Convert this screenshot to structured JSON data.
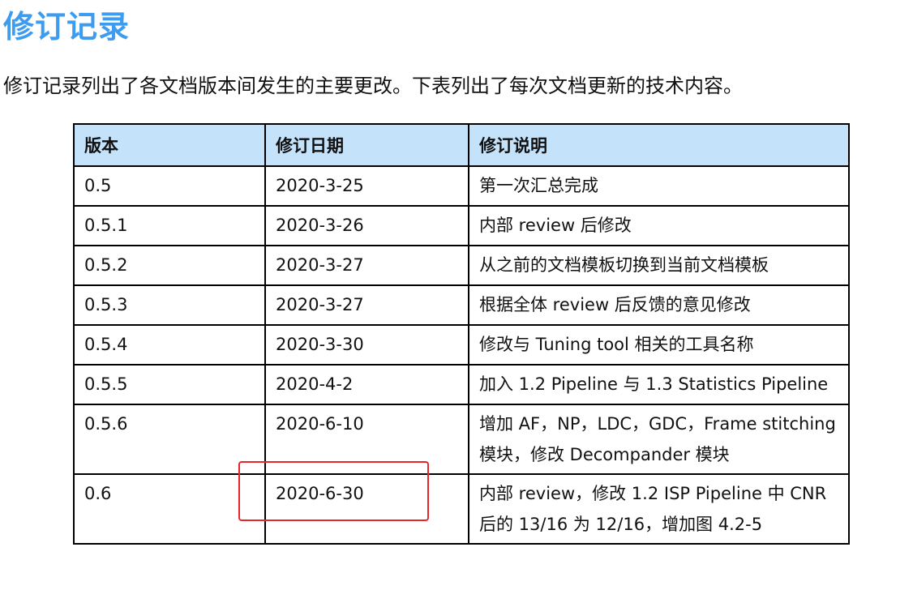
{
  "title": "修订记录",
  "intro": "修订记录列出了各文档版本间发生的主要更改。下表列出了每次文档更新的技术内容。",
  "table": {
    "headers": [
      "版本",
      "修订日期",
      "修订说明"
    ],
    "rows": [
      [
        "0.5",
        "2020-3-25",
        "第一次汇总完成"
      ],
      [
        "0.5.1",
        "2020-3-26",
        "内部 review 后修改"
      ],
      [
        "0.5.2",
        "2020-3-27",
        "从之前的文档模板切换到当前文档模板"
      ],
      [
        "0.5.3",
        "2020-3-27",
        "根据全体 review 后反馈的意见修改"
      ],
      [
        "0.5.4",
        "2020-3-30",
        "修改与 Tuning tool 相关的工具名称"
      ],
      [
        "0.5.5",
        "2020-4-2",
        "加入 1.2 Pipeline 与 1.3 Statistics Pipeline"
      ],
      [
        "0.5.6",
        "2020-6-10",
        "增加 AF，NP，LDC，GDC，Frame stitching 模块，修改 Decompander 模块"
      ],
      [
        "0.6",
        "2020-6-30",
        "内部 review，修改 1.2 ISP Pipeline 中 CNR 后的 13/16 为 12/16，增加图 4.2-5"
      ]
    ]
  },
  "colors": {
    "title": "#3d9bf0",
    "header_bg": "#c5e2fb",
    "highlight_box": "#e8262a"
  }
}
